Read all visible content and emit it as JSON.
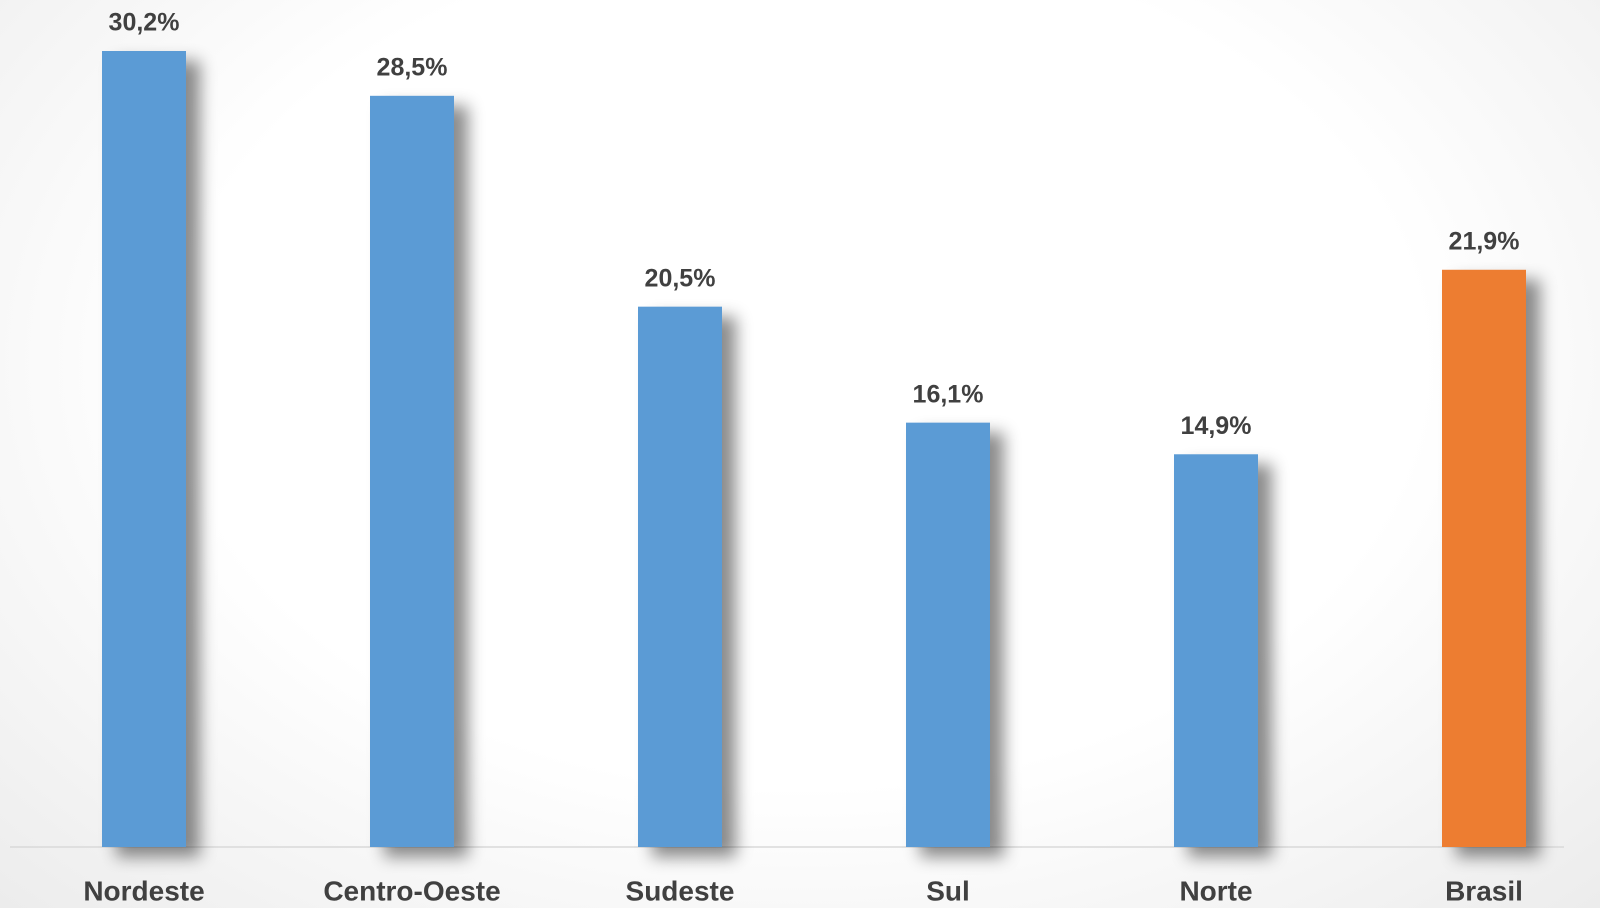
{
  "chart_data": {
    "type": "bar",
    "categories": [
      "Nordeste",
      "Centro-Oeste",
      "Sudeste",
      "Sul",
      "Norte",
      "Brasil"
    ],
    "values": [
      30.2,
      28.5,
      20.5,
      16.1,
      14.9,
      21.9
    ],
    "value_labels": [
      "30,2%",
      "28,5%",
      "20,5%",
      "16,1%",
      "14,9%",
      "21,9%"
    ],
    "colors": [
      "#5b9bd5",
      "#5b9bd5",
      "#5b9bd5",
      "#5b9bd5",
      "#5b9bd5",
      "#ed7d31"
    ]
  }
}
